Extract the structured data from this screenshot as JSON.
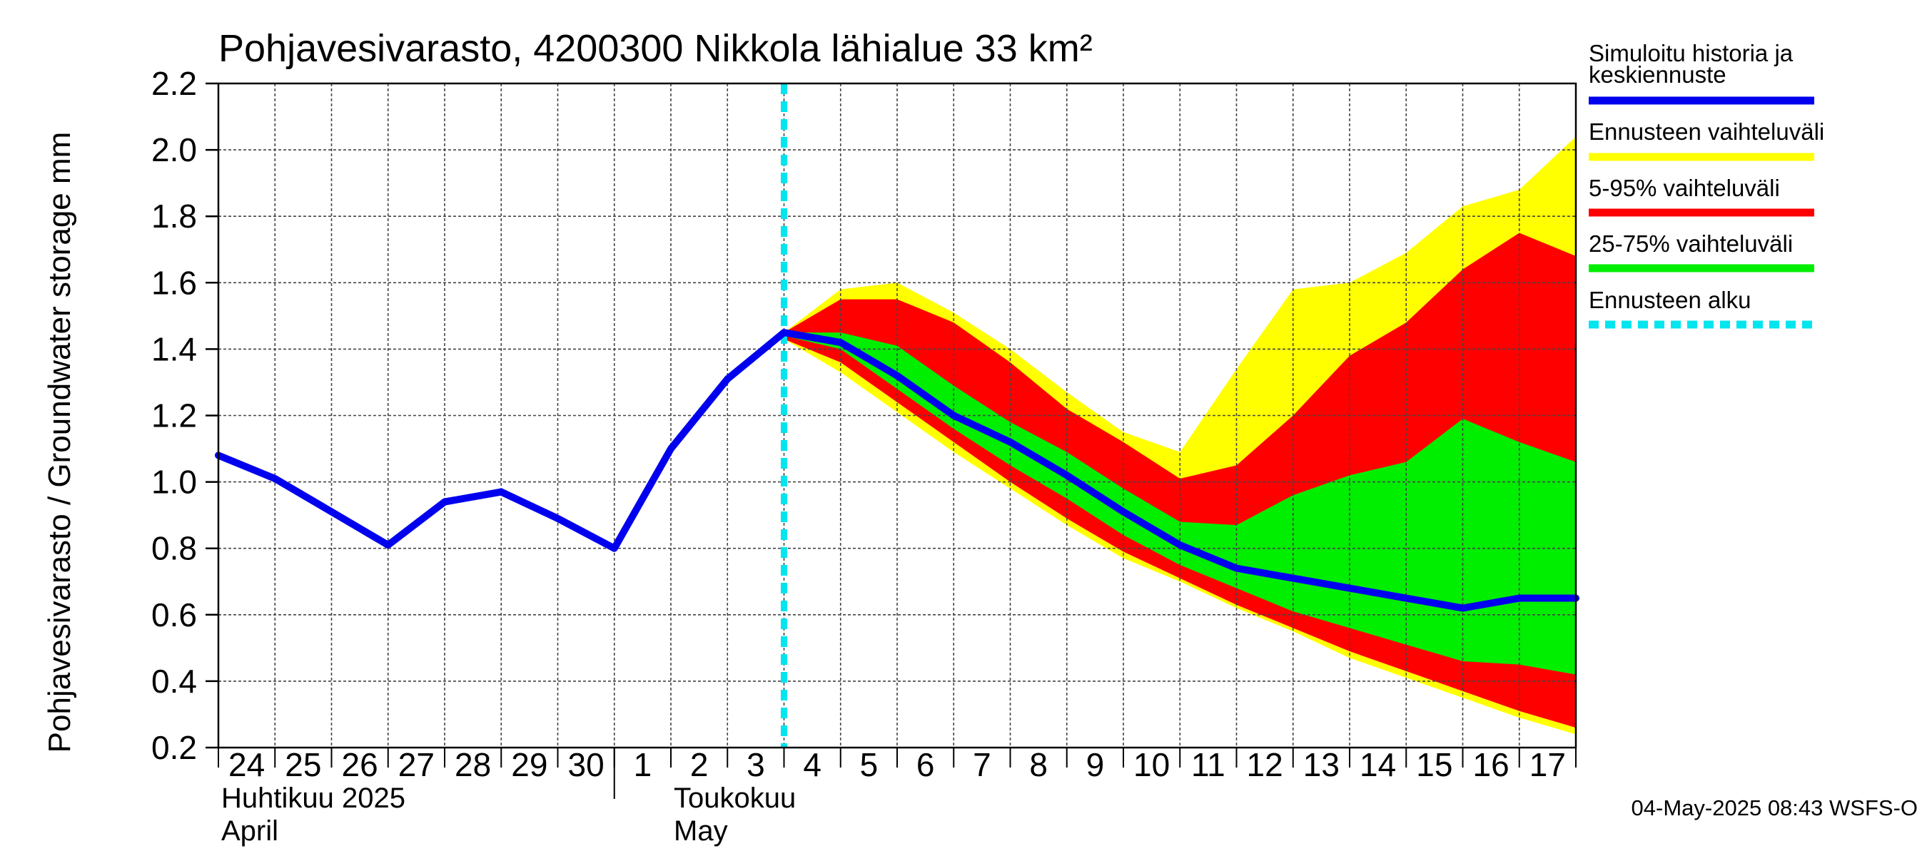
{
  "chart_data": {
    "type": "area",
    "title": "Pohjavesivarasto, 4200300 Nikkola lähialue 33 km²",
    "ylabel": "Pohjavesivarasto / Groundwater storage   mm",
    "ylim": [
      0.2,
      2.2
    ],
    "yticks": [
      "0.2",
      "0.4",
      "0.6",
      "0.8",
      "1.0",
      "1.2",
      "1.4",
      "1.6",
      "1.8",
      "2.0",
      "2.2"
    ],
    "x_range": [
      0,
      24
    ],
    "x_tick_labels": [
      {
        "x": 0,
        "label": "24"
      },
      {
        "x": 1,
        "label": "25"
      },
      {
        "x": 2,
        "label": "26"
      },
      {
        "x": 3,
        "label": "27"
      },
      {
        "x": 4,
        "label": "28"
      },
      {
        "x": 5,
        "label": "29"
      },
      {
        "x": 6,
        "label": "30"
      },
      {
        "x": 7,
        "label": "1"
      },
      {
        "x": 8,
        "label": "2"
      },
      {
        "x": 9,
        "label": "3"
      },
      {
        "x": 10,
        "label": "4"
      },
      {
        "x": 11,
        "label": "5"
      },
      {
        "x": 12,
        "label": "6"
      },
      {
        "x": 13,
        "label": "7"
      },
      {
        "x": 14,
        "label": "8"
      },
      {
        "x": 15,
        "label": "9"
      },
      {
        "x": 16,
        "label": "10"
      },
      {
        "x": 17,
        "label": "11"
      },
      {
        "x": 18,
        "label": "12"
      },
      {
        "x": 19,
        "label": "13"
      },
      {
        "x": 20,
        "label": "14"
      },
      {
        "x": 21,
        "label": "15"
      },
      {
        "x": 22,
        "label": "16"
      },
      {
        "x": 23,
        "label": "17"
      }
    ],
    "month_labels": [
      {
        "x": 0,
        "line1": "Huhtikuu  2025",
        "line2": "April"
      },
      {
        "x": 8,
        "line1": "Toukokuu",
        "line2": "May"
      }
    ],
    "month_divider_x": 7,
    "forecast_start_x": 10,
    "series": [
      {
        "name": "Simuloitu historia ja keskiennuste",
        "color": "#0000ee",
        "x": [
          0,
          1,
          2,
          3,
          4,
          5,
          6,
          7,
          8,
          9,
          10,
          11,
          12,
          13,
          14,
          15,
          16,
          17,
          18,
          19,
          20,
          21,
          22,
          23,
          24
        ],
        "values": [
          1.08,
          1.01,
          0.91,
          0.81,
          0.94,
          0.97,
          0.89,
          0.8,
          1.1,
          1.31,
          1.45,
          1.42,
          1.32,
          1.2,
          1.12,
          1.02,
          0.91,
          0.81,
          0.74,
          0.71,
          0.68,
          0.65,
          0.62,
          0.65,
          0.65
        ]
      }
    ],
    "bands": [
      {
        "name": "Ennusteen vaihteluväli",
        "color": "#ffff00",
        "x": [
          10,
          11,
          12,
          13,
          14,
          15,
          16,
          17,
          18,
          19,
          20,
          21,
          22,
          23,
          24
        ],
        "upper": [
          1.45,
          1.58,
          1.6,
          1.51,
          1.4,
          1.27,
          1.15,
          1.09,
          1.34,
          1.58,
          1.6,
          1.69,
          1.83,
          1.88,
          2.04
        ],
        "lower": [
          1.43,
          1.33,
          1.21,
          1.09,
          0.98,
          0.87,
          0.77,
          0.7,
          0.62,
          0.55,
          0.47,
          0.41,
          0.35,
          0.29,
          0.24
        ]
      },
      {
        "name": "5-95% vaihteluväli",
        "color": "#ff0000",
        "x": [
          10,
          11,
          12,
          13,
          14,
          15,
          16,
          17,
          18,
          19,
          20,
          21,
          22,
          23,
          24
        ],
        "upper": [
          1.45,
          1.55,
          1.55,
          1.48,
          1.36,
          1.22,
          1.12,
          1.01,
          1.05,
          1.2,
          1.38,
          1.48,
          1.64,
          1.75,
          1.68
        ],
        "lower": [
          1.43,
          1.36,
          1.24,
          1.12,
          1.0,
          0.89,
          0.79,
          0.71,
          0.63,
          0.56,
          0.49,
          0.43,
          0.37,
          0.31,
          0.26
        ]
      },
      {
        "name": "25-75% vaihteluväli",
        "color": "#00ee00",
        "x": [
          10,
          11,
          12,
          13,
          14,
          15,
          16,
          17,
          18,
          19,
          20,
          21,
          22,
          23,
          24
        ],
        "upper": [
          1.45,
          1.45,
          1.41,
          1.29,
          1.18,
          1.09,
          0.98,
          0.88,
          0.87,
          0.96,
          1.02,
          1.06,
          1.19,
          1.12,
          1.06
        ],
        "lower": [
          1.44,
          1.4,
          1.28,
          1.16,
          1.05,
          0.95,
          0.84,
          0.75,
          0.68,
          0.61,
          0.56,
          0.51,
          0.46,
          0.45,
          0.42
        ]
      }
    ],
    "legend": [
      {
        "label": "Simuloitu historia ja keskiennuste",
        "lines": [
          "Simuloitu historia ja",
          "keskiennuste"
        ],
        "color": "#0000ee",
        "style": "solid"
      },
      {
        "label": "Ennusteen vaihteluväli",
        "lines": [
          "Ennusteen vaihteluväli"
        ],
        "color": "#ffff00",
        "style": "solid"
      },
      {
        "label": "5-95% vaihteluväli",
        "lines": [
          "5-95% vaihteluväli"
        ],
        "color": "#ff0000",
        "style": "solid"
      },
      {
        "label": "25-75% vaihteluväli",
        "lines": [
          "25-75% vaihteluväli"
        ],
        "color": "#00ee00",
        "style": "solid"
      },
      {
        "label": "Ennusteen alku",
        "lines": [
          "Ennusteen alku"
        ],
        "color": "#00e5ee",
        "style": "dashed"
      }
    ],
    "footer": "04-May-2025 08:43 WSFS-O",
    "grid": true
  }
}
